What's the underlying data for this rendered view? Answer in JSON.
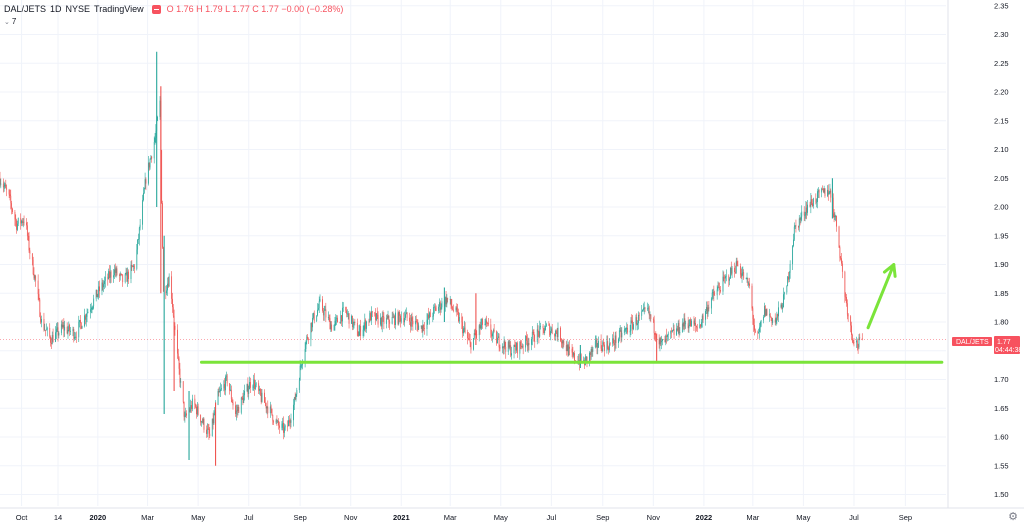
{
  "header": {
    "symbol": "DAL/JETS",
    "interval": "1D",
    "exchange": "NYSE",
    "source": "TradingView",
    "ohlc": "O 1.76  H 1.79  L 1.77  C 1.77  −0.00 (−0.28%)",
    "indicator_count": "7"
  },
  "colors": {
    "up": "#26a69a",
    "down": "#ef5350",
    "annotation": "#7be43a",
    "last_price_bg": "#f7525f"
  },
  "last_price": {
    "value": "1.77",
    "countdown": "04:44:38"
  },
  "chart_data": {
    "type": "candlestick",
    "title": "",
    "xlabel": "",
    "ylabel": "",
    "ylim": [
      1.48,
      2.36
    ],
    "y_ticks": [
      2.35,
      2.3,
      2.25,
      2.2,
      2.15,
      2.1,
      2.05,
      2.0,
      1.95,
      1.9,
      1.85,
      1.8,
      1.75,
      1.7,
      1.65,
      1.6,
      1.55,
      1.5
    ],
    "x_ticks": [
      {
        "label": "Oct",
        "date": "2019-10-01"
      },
      {
        "label": "14",
        "date": "2019-11-14"
      },
      {
        "label": "2020",
        "date": "2020-01-01"
      },
      {
        "label": "Mar",
        "date": "2020-03-01"
      },
      {
        "label": "May",
        "date": "2020-05-01"
      },
      {
        "label": "Jul",
        "date": "2020-07-01"
      },
      {
        "label": "Sep",
        "date": "2020-09-01"
      },
      {
        "label": "Nov",
        "date": "2020-11-01"
      },
      {
        "label": "2021",
        "date": "2021-01-01"
      },
      {
        "label": "Mar",
        "date": "2021-03-01"
      },
      {
        "label": "May",
        "date": "2021-05-01"
      },
      {
        "label": "Jul",
        "date": "2021-07-01"
      },
      {
        "label": "Sep",
        "date": "2021-09-01"
      },
      {
        "label": "Nov",
        "date": "2021-11-01"
      },
      {
        "label": "2022",
        "date": "2022-01-01"
      },
      {
        "label": "Mar",
        "date": "2022-03-01"
      },
      {
        "label": "May",
        "date": "2022-05-01"
      },
      {
        "label": "Jul",
        "date": "2022-07-01"
      },
      {
        "label": "Sep",
        "date": "2022-09-01"
      }
    ],
    "x_range": [
      "2019-09-05",
      "2022-10-20"
    ],
    "price_path": [
      [
        "2019-09-05",
        2.05
      ],
      [
        "2019-09-15",
        2.02
      ],
      [
        "2019-09-25",
        1.97
      ],
      [
        "2019-10-05",
        1.98
      ],
      [
        "2019-10-10",
        1.93
      ],
      [
        "2019-10-18",
        1.87
      ],
      [
        "2019-10-25",
        1.8
      ],
      [
        "2019-11-05",
        1.77
      ],
      [
        "2019-11-20",
        1.79
      ],
      [
        "2019-12-05",
        1.78
      ],
      [
        "2019-12-20",
        1.82
      ],
      [
        "2020-01-05",
        1.86
      ],
      [
        "2020-01-20",
        1.89
      ],
      [
        "2020-02-01",
        1.87
      ],
      [
        "2020-02-15",
        1.9
      ],
      [
        "2020-02-28",
        2.05
      ],
      [
        "2020-03-10",
        2.12
      ],
      [
        "2020-03-16",
        2.18
      ],
      [
        "2020-03-20",
        1.85
      ],
      [
        "2020-03-28",
        1.88
      ],
      [
        "2020-04-05",
        1.75
      ],
      [
        "2020-04-15",
        1.63
      ],
      [
        "2020-04-25",
        1.66
      ],
      [
        "2020-05-05",
        1.63
      ],
      [
        "2020-05-15",
        1.6
      ],
      [
        "2020-05-25",
        1.67
      ],
      [
        "2020-06-05",
        1.7
      ],
      [
        "2020-06-15",
        1.64
      ],
      [
        "2020-06-25",
        1.67
      ],
      [
        "2020-07-05",
        1.7
      ],
      [
        "2020-07-15",
        1.67
      ],
      [
        "2020-07-25",
        1.65
      ],
      [
        "2020-08-05",
        1.62
      ],
      [
        "2020-08-15",
        1.61
      ],
      [
        "2020-08-25",
        1.66
      ],
      [
        "2020-09-05",
        1.75
      ],
      [
        "2020-09-15",
        1.8
      ],
      [
        "2020-09-25",
        1.83
      ],
      [
        "2020-10-10",
        1.79
      ],
      [
        "2020-10-25",
        1.82
      ],
      [
        "2020-11-10",
        1.78
      ],
      [
        "2020-11-25",
        1.81
      ],
      [
        "2020-12-10",
        1.8
      ],
      [
        "2021-01-05",
        1.81
      ],
      [
        "2021-01-25",
        1.79
      ],
      [
        "2021-02-10",
        1.82
      ],
      [
        "2021-02-25",
        1.84
      ],
      [
        "2021-03-10",
        1.81
      ],
      [
        "2021-03-25",
        1.76
      ],
      [
        "2021-04-10",
        1.8
      ],
      [
        "2021-04-25",
        1.77
      ],
      [
        "2021-05-15",
        1.75
      ],
      [
        "2021-06-05",
        1.77
      ],
      [
        "2021-06-25",
        1.79
      ],
      [
        "2021-07-10",
        1.78
      ],
      [
        "2021-07-25",
        1.74
      ],
      [
        "2021-08-10",
        1.73
      ],
      [
        "2021-08-25",
        1.76
      ],
      [
        "2021-09-10",
        1.76
      ],
      [
        "2021-09-25",
        1.78
      ],
      [
        "2021-10-10",
        1.8
      ],
      [
        "2021-10-25",
        1.82
      ],
      [
        "2021-11-10",
        1.76
      ],
      [
        "2021-11-25",
        1.78
      ],
      [
        "2021-12-10",
        1.8
      ],
      [
        "2021-12-25",
        1.79
      ],
      [
        "2022-01-10",
        1.84
      ],
      [
        "2022-01-25",
        1.87
      ],
      [
        "2022-02-10",
        1.9
      ],
      [
        "2022-02-25",
        1.86
      ],
      [
        "2022-03-05",
        1.76
      ],
      [
        "2022-03-15",
        1.82
      ],
      [
        "2022-03-28",
        1.8
      ],
      [
        "2022-04-10",
        1.85
      ],
      [
        "2022-04-20",
        1.96
      ],
      [
        "2022-05-05",
        2.0
      ],
      [
        "2022-05-20",
        2.02
      ],
      [
        "2022-06-01",
        2.03
      ],
      [
        "2022-06-10",
        1.97
      ],
      [
        "2022-06-20",
        1.85
      ],
      [
        "2022-06-28",
        1.78
      ],
      [
        "2022-07-05",
        1.76
      ],
      [
        "2022-07-12",
        1.77
      ]
    ],
    "spikes": [
      {
        "date": "2020-03-12",
        "high": 2.27,
        "low": 2.0
      },
      {
        "date": "2020-03-17",
        "high": 2.21,
        "low": 1.85
      },
      {
        "date": "2020-03-21",
        "high": 1.95,
        "low": 1.64
      },
      {
        "date": "2020-04-02",
        "high": 1.8,
        "low": 1.68
      },
      {
        "date": "2020-04-20",
        "high": 1.68,
        "low": 1.56
      },
      {
        "date": "2020-05-22",
        "high": 1.66,
        "low": 1.55
      },
      {
        "date": "2021-02-22",
        "high": 1.86,
        "low": 1.8
      },
      {
        "date": "2021-04-01",
        "high": 1.85,
        "low": 1.76
      },
      {
        "date": "2021-08-05",
        "high": 1.76,
        "low": 1.72
      },
      {
        "date": "2021-11-05",
        "high": 1.78,
        "low": 1.73
      },
      {
        "date": "2022-06-05",
        "high": 2.05,
        "low": 1.98
      }
    ],
    "support_line": {
      "from": [
        "2020-05-05",
        1.73
      ],
      "to": [
        "2022-10-15",
        1.73
      ]
    },
    "arrow": {
      "from": [
        "2022-07-18",
        1.79
      ],
      "to": [
        "2022-08-18",
        1.9
      ]
    },
    "last_price_line": 1.77
  }
}
